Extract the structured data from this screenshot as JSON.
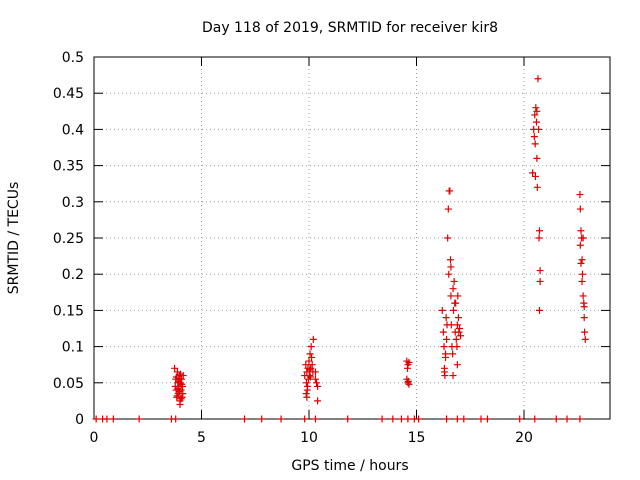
{
  "chart_data": {
    "type": "scatter",
    "title": "Day 118 of 2019, SRMTID for receiver kir8",
    "xlabel": "GPS time / hours",
    "ylabel": "SRMTID / TECUs",
    "xlim": [
      0,
      24
    ],
    "ylim": [
      0,
      0.5
    ],
    "xticks": [
      0,
      5,
      10,
      15,
      20
    ],
    "xtick_labels": [
      "0",
      "5",
      "10",
      "15",
      "20"
    ],
    "yticks": [
      0,
      0.05,
      0.1,
      0.15,
      0.2,
      0.25,
      0.3,
      0.35,
      0.4,
      0.45,
      0.5
    ],
    "ytick_labels": [
      "0",
      "0.05",
      "0.1",
      "0.15",
      "0.2",
      "0.25",
      "0.3",
      "0.35",
      "0.4",
      "0.45",
      "0.5"
    ],
    "grid": true,
    "marker": "+",
    "color": "#e00000",
    "series": [
      {
        "name": "SRMTID",
        "points": [
          [
            0.1,
            0
          ],
          [
            0.4,
            0
          ],
          [
            0.6,
            0
          ],
          [
            0.9,
            0
          ],
          [
            2.1,
            0
          ],
          [
            3.6,
            0
          ],
          [
            3.8,
            0
          ],
          [
            7.0,
            0
          ],
          [
            7.8,
            0
          ],
          [
            8.7,
            0
          ],
          [
            9.8,
            0
          ],
          [
            10.3,
            0
          ],
          [
            11.8,
            0
          ],
          [
            13.4,
            0
          ],
          [
            13.9,
            0
          ],
          [
            14.3,
            0
          ],
          [
            14.6,
            0
          ],
          [
            14.9,
            0
          ],
          [
            15.1,
            0
          ],
          [
            16.4,
            0
          ],
          [
            16.9,
            0
          ],
          [
            17.2,
            0
          ],
          [
            18.0,
            0
          ],
          [
            18.3,
            0
          ],
          [
            19.8,
            0
          ],
          [
            20.5,
            0
          ],
          [
            21.5,
            0
          ],
          [
            22.0,
            0
          ],
          [
            22.6,
            0
          ],
          [
            3.75,
            0.07
          ],
          [
            3.8,
            0.055
          ],
          [
            3.82,
            0.04
          ],
          [
            3.85,
            0.03
          ],
          [
            3.88,
            0.065
          ],
          [
            3.9,
            0.05
          ],
          [
            3.92,
            0.035
          ],
          [
            3.95,
            0.045
          ],
          [
            3.97,
            0.06
          ],
          [
            4.0,
            0.025
          ],
          [
            4.02,
            0.05
          ],
          [
            4.05,
            0.04
          ],
          [
            4.07,
            0.055
          ],
          [
            4.1,
            0.03
          ],
          [
            4.12,
            0.045
          ],
          [
            4.15,
            0.06
          ],
          [
            3.78,
            0.045
          ],
          [
            3.83,
            0.058
          ],
          [
            3.87,
            0.032
          ],
          [
            3.93,
            0.052
          ],
          [
            3.98,
            0.038
          ],
          [
            4.03,
            0.062
          ],
          [
            4.08,
            0.048
          ],
          [
            4.13,
            0.035
          ],
          [
            4.0,
            0.02
          ],
          [
            3.9,
            0.042
          ],
          [
            4.05,
            0.028
          ],
          [
            3.96,
            0.056
          ],
          [
            9.8,
            0.06
          ],
          [
            9.85,
            0.075
          ],
          [
            9.88,
            0.05
          ],
          [
            9.9,
            0.065
          ],
          [
            9.92,
            0.04
          ],
          [
            9.95,
            0.07
          ],
          [
            9.97,
            0.055
          ],
          [
            10.0,
            0.08
          ],
          [
            10.02,
            0.06
          ],
          [
            10.05,
            0.09
          ],
          [
            10.08,
            0.07
          ],
          [
            10.1,
            0.1
          ],
          [
            10.12,
            0.085
          ],
          [
            10.15,
            0.075
          ],
          [
            10.18,
            0.065
          ],
          [
            10.2,
            0.11
          ],
          [
            9.87,
            0.035
          ],
          [
            9.93,
            0.045
          ],
          [
            10.03,
            0.068
          ],
          [
            10.07,
            0.058
          ],
          [
            10.3,
            0.065
          ],
          [
            10.35,
            0.05
          ],
          [
            10.4,
            0.045
          ],
          [
            10.4,
            0.025
          ],
          [
            10.3,
            0.055
          ],
          [
            9.9,
            0.03
          ],
          [
            14.55,
            0.08
          ],
          [
            14.6,
            0.075
          ],
          [
            14.65,
            0.078
          ],
          [
            14.55,
            0.055
          ],
          [
            14.6,
            0.05
          ],
          [
            14.65,
            0.048
          ],
          [
            14.58,
            0.07
          ],
          [
            14.62,
            0.052
          ],
          [
            16.2,
            0.15
          ],
          [
            16.25,
            0.12
          ],
          [
            16.28,
            0.1
          ],
          [
            16.3,
            0.07
          ],
          [
            16.32,
            0.06
          ],
          [
            16.35,
            0.09
          ],
          [
            16.38,
            0.14
          ],
          [
            16.4,
            0.11
          ],
          [
            16.45,
            0.25
          ],
          [
            16.48,
            0.29
          ],
          [
            16.5,
            0.2
          ],
          [
            16.52,
            0.315
          ],
          [
            16.55,
            0.315
          ],
          [
            16.58,
            0.22
          ],
          [
            16.6,
            0.17
          ],
          [
            16.62,
            0.13
          ],
          [
            16.65,
            0.1
          ],
          [
            16.68,
            0.09
          ],
          [
            16.7,
            0.06
          ],
          [
            16.72,
            0.15
          ],
          [
            16.75,
            0.19
          ],
          [
            16.78,
            0.16
          ],
          [
            16.8,
            0.12
          ],
          [
            16.85,
            0.11
          ],
          [
            16.88,
            0.1
          ],
          [
            16.9,
            0.13
          ],
          [
            16.92,
            0.17
          ],
          [
            16.95,
            0.14
          ],
          [
            16.97,
            0.12
          ],
          [
            17.0,
            0.125
          ],
          [
            17.05,
            0.115
          ],
          [
            16.3,
            0.065
          ],
          [
            16.35,
            0.085
          ],
          [
            16.42,
            0.13
          ],
          [
            16.6,
            0.21
          ],
          [
            16.7,
            0.18
          ],
          [
            16.82,
            0.16
          ],
          [
            16.9,
            0.075
          ],
          [
            20.4,
            0.34
          ],
          [
            20.45,
            0.4
          ],
          [
            20.5,
            0.42
          ],
          [
            20.52,
            0.38
          ],
          [
            20.55,
            0.43
          ],
          [
            20.58,
            0.41
          ],
          [
            20.6,
            0.36
          ],
          [
            20.62,
            0.32
          ],
          [
            20.65,
            0.47
          ],
          [
            20.68,
            0.4
          ],
          [
            20.7,
            0.25
          ],
          [
            20.72,
            0.26
          ],
          [
            20.75,
            0.205
          ],
          [
            20.75,
            0.19
          ],
          [
            20.72,
            0.15
          ],
          [
            20.48,
            0.39
          ],
          [
            20.53,
            0.335
          ],
          [
            20.6,
            0.425
          ],
          [
            22.6,
            0.31
          ],
          [
            22.62,
            0.29
          ],
          [
            22.65,
            0.26
          ],
          [
            22.68,
            0.25
          ],
          [
            22.7,
            0.22
          ],
          [
            22.72,
            0.2
          ],
          [
            22.75,
            0.17
          ],
          [
            22.78,
            0.16
          ],
          [
            22.8,
            0.14
          ],
          [
            22.82,
            0.12
          ],
          [
            22.85,
            0.11
          ],
          [
            22.62,
            0.24
          ],
          [
            22.7,
            0.19
          ],
          [
            22.75,
            0.25
          ],
          [
            22.65,
            0.215
          ],
          [
            22.8,
            0.155
          ]
        ]
      }
    ]
  }
}
